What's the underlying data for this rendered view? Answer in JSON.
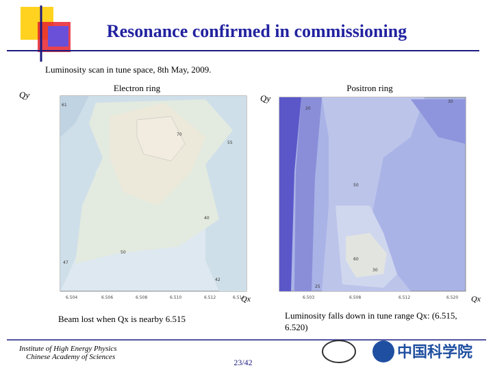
{
  "header": {
    "title": "Resonance confirmed in commissioning",
    "subtitle": "Luminosity scan in tune space, 8th May, 2009."
  },
  "plots": [
    {
      "label": "Electron ring",
      "y_axis": "Qy",
      "x_axis": "Qx",
      "x_ticks": [
        "6.504",
        "6.506",
        "6.508",
        "6.510",
        "6.512",
        "6.514"
      ],
      "contour_labels": [
        "61",
        "70",
        "55",
        "40",
        "50",
        "47",
        "42"
      ],
      "note": "Beam lost when Qx is nearby 6.515"
    },
    {
      "label": "Positron ring",
      "y_axis": "Qy",
      "x_axis": "Qx",
      "x_ticks": [
        "6.503",
        "6.508",
        "6.512",
        "6.520"
      ],
      "contour_labels": [
        "20",
        "30",
        "50",
        "60",
        "30",
        "25"
      ],
      "note": "Luminosity falls down in tune range Qx: (6.515, 6.520)"
    }
  ],
  "footer": {
    "institute": "Institute of High Energy Physics",
    "academy": "Chinese Academy of Sciences",
    "page": "23/42",
    "logo_text": "中国科学院"
  }
}
